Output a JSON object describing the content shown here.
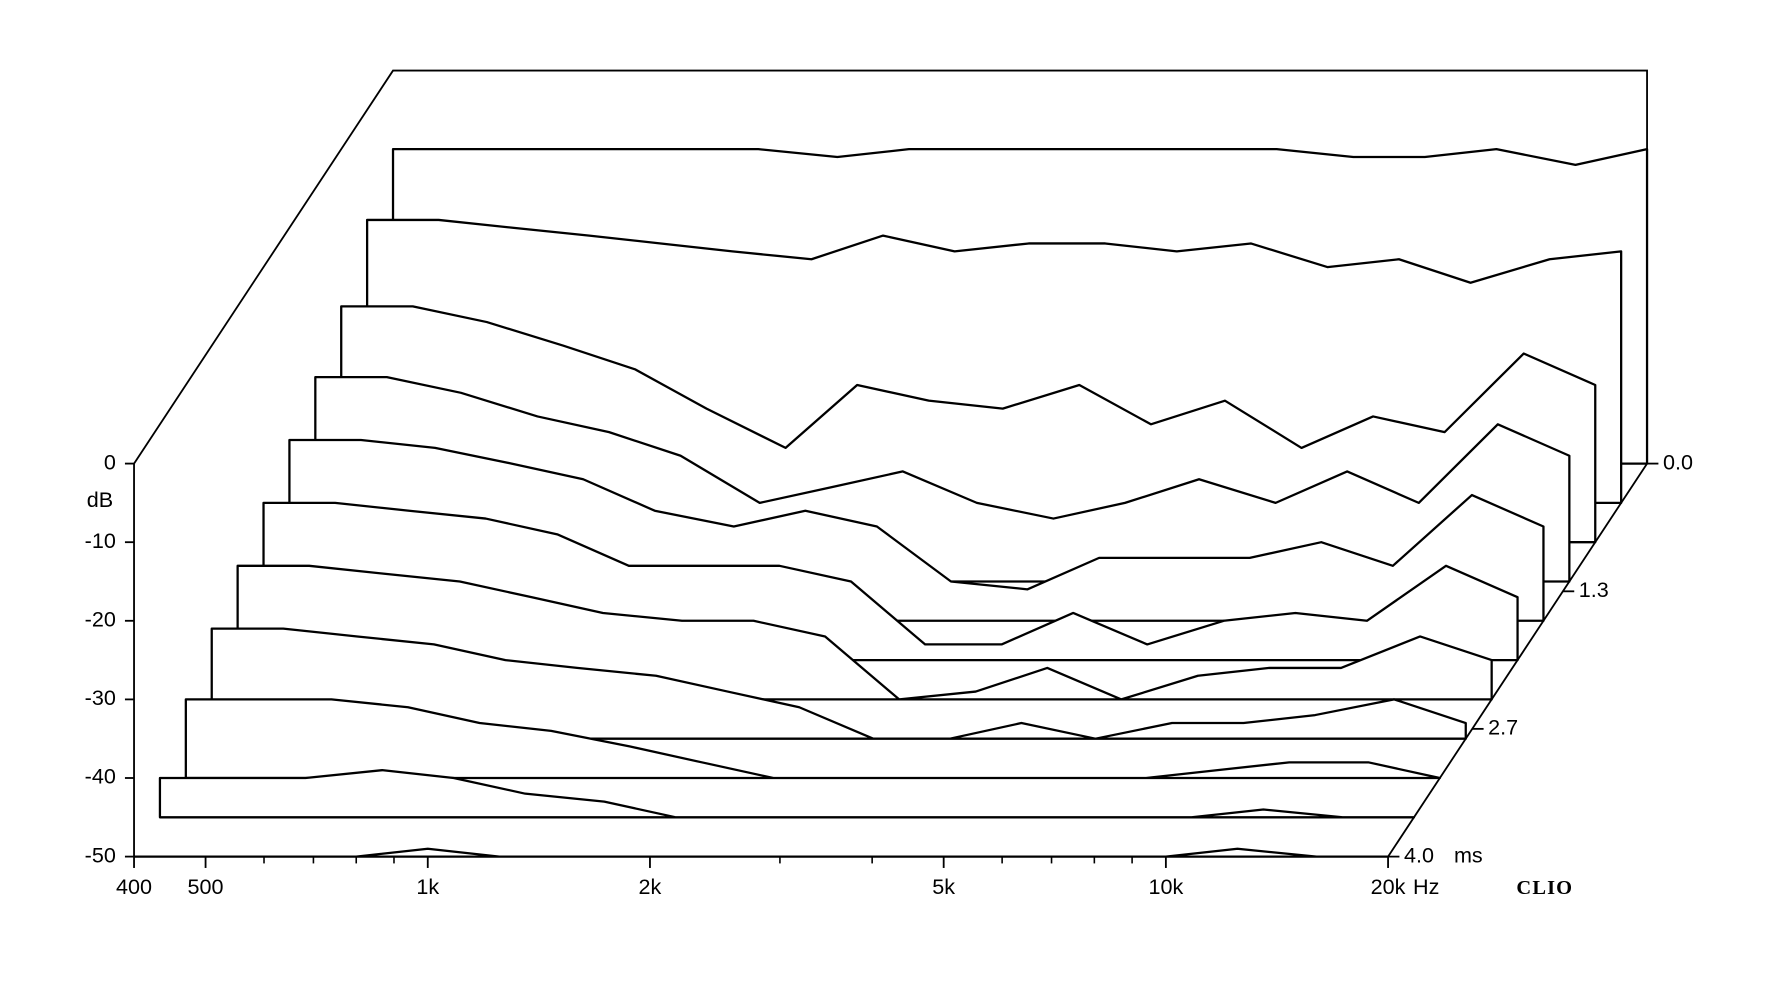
{
  "chart_data": {
    "type": "waterfall",
    "x_unit": "Hz",
    "y_label": "dB",
    "z_unit": "ms",
    "brand": "CLIO",
    "log_x": true,
    "xlim": [
      400,
      20000
    ],
    "ylim": [
      -50,
      0
    ],
    "zlim": [
      0,
      4
    ],
    "xticks": [
      400,
      500,
      {
        "value": 1000,
        "label": "1k"
      },
      {
        "value": 2000,
        "label": "2k"
      },
      {
        "value": 5000,
        "label": "5k"
      },
      {
        "value": 10000,
        "label": "10k"
      },
      {
        "value": 20000,
        "label": "20k"
      }
    ],
    "xticks_minor": [
      600,
      700,
      800,
      900,
      3000,
      4000,
      6000,
      7000,
      8000,
      9000
    ],
    "yticks": [
      0,
      -10,
      -20,
      -30,
      -40,
      -50
    ],
    "zticks": [
      {
        "value": 0,
        "label": "0.0"
      },
      1.3,
      2.7,
      {
        "value": 4,
        "label": "4.0"
      }
    ],
    "color": "#000000",
    "x": [
      400,
      500,
      630,
      800,
      1000,
      1250,
      1600,
      2000,
      2500,
      3150,
      4000,
      5000,
      6300,
      8000,
      10000,
      12500,
      16000,
      20000
    ],
    "series": [
      {
        "z": 0,
        "values": [
          -10,
          -10,
          -10,
          -10,
          -10,
          -10,
          -11,
          -10,
          -10,
          -10,
          -10,
          -10,
          -10,
          -11,
          -11,
          -10,
          -12,
          -10
        ]
      },
      {
        "z": 0.4,
        "values": [
          -14,
          -14,
          -15,
          -16,
          -17,
          -18,
          -19,
          -16,
          -18,
          -17,
          -17,
          -18,
          -17,
          -20,
          -19,
          -22,
          -19,
          -18
        ]
      },
      {
        "z": 0.8,
        "values": [
          -20,
          -20,
          -22,
          -25,
          -28,
          -33,
          -38,
          -30,
          -32,
          -33,
          -30,
          -35,
          -32,
          -38,
          -34,
          -36,
          -26,
          -30
        ]
      },
      {
        "z": 1.2,
        "values": [
          -24,
          -24,
          -26,
          -29,
          -31,
          -34,
          -40,
          -38,
          -36,
          -40,
          -42,
          -40,
          -37,
          -40,
          -36,
          -40,
          -30,
          -34
        ]
      },
      {
        "z": 1.6,
        "values": [
          -27,
          -27,
          -28,
          -30,
          -32,
          -36,
          -38,
          -36,
          -38,
          -45,
          -46,
          -42,
          -42,
          -42,
          -40,
          -43,
          -34,
          -38
        ]
      },
      {
        "z": 2.0,
        "values": [
          -30,
          -30,
          -31,
          -32,
          -34,
          -38,
          -38,
          -38,
          -40,
          -48,
          -48,
          -44,
          -48,
          -45,
          -44,
          -45,
          -38,
          -42
        ]
      },
      {
        "z": 2.4,
        "values": [
          -33,
          -33,
          -34,
          -35,
          -37,
          -39,
          -40,
          -40,
          -42,
          -50,
          -49,
          -46,
          -50,
          -47,
          -46,
          -46,
          -42,
          -45
        ]
      },
      {
        "z": 2.8,
        "values": [
          -36,
          -36,
          -37,
          -38,
          -40,
          -41,
          -42,
          -44,
          -46,
          -50,
          -50,
          -48,
          -50,
          -48,
          -48,
          -47,
          -45,
          -48
        ]
      },
      {
        "z": 3.2,
        "values": [
          -40,
          -40,
          -40,
          -41,
          -43,
          -44,
          -46,
          -48,
          -50,
          -50,
          -50,
          -50,
          -50,
          -50,
          -49,
          -48,
          -48,
          -50
        ]
      },
      {
        "z": 3.6,
        "values": [
          -45,
          -45,
          -45,
          -44,
          -45,
          -47,
          -48,
          -50,
          -50,
          -50,
          -50,
          -50,
          -50,
          -50,
          -50,
          -49,
          -50,
          -50
        ]
      },
      {
        "z": 4.0,
        "values": [
          -50,
          -50,
          -50,
          -50,
          -49,
          -50,
          -50,
          -50,
          -50,
          -50,
          -50,
          -50,
          -50,
          -50,
          -50,
          -49,
          -50,
          -50
        ]
      }
    ]
  }
}
